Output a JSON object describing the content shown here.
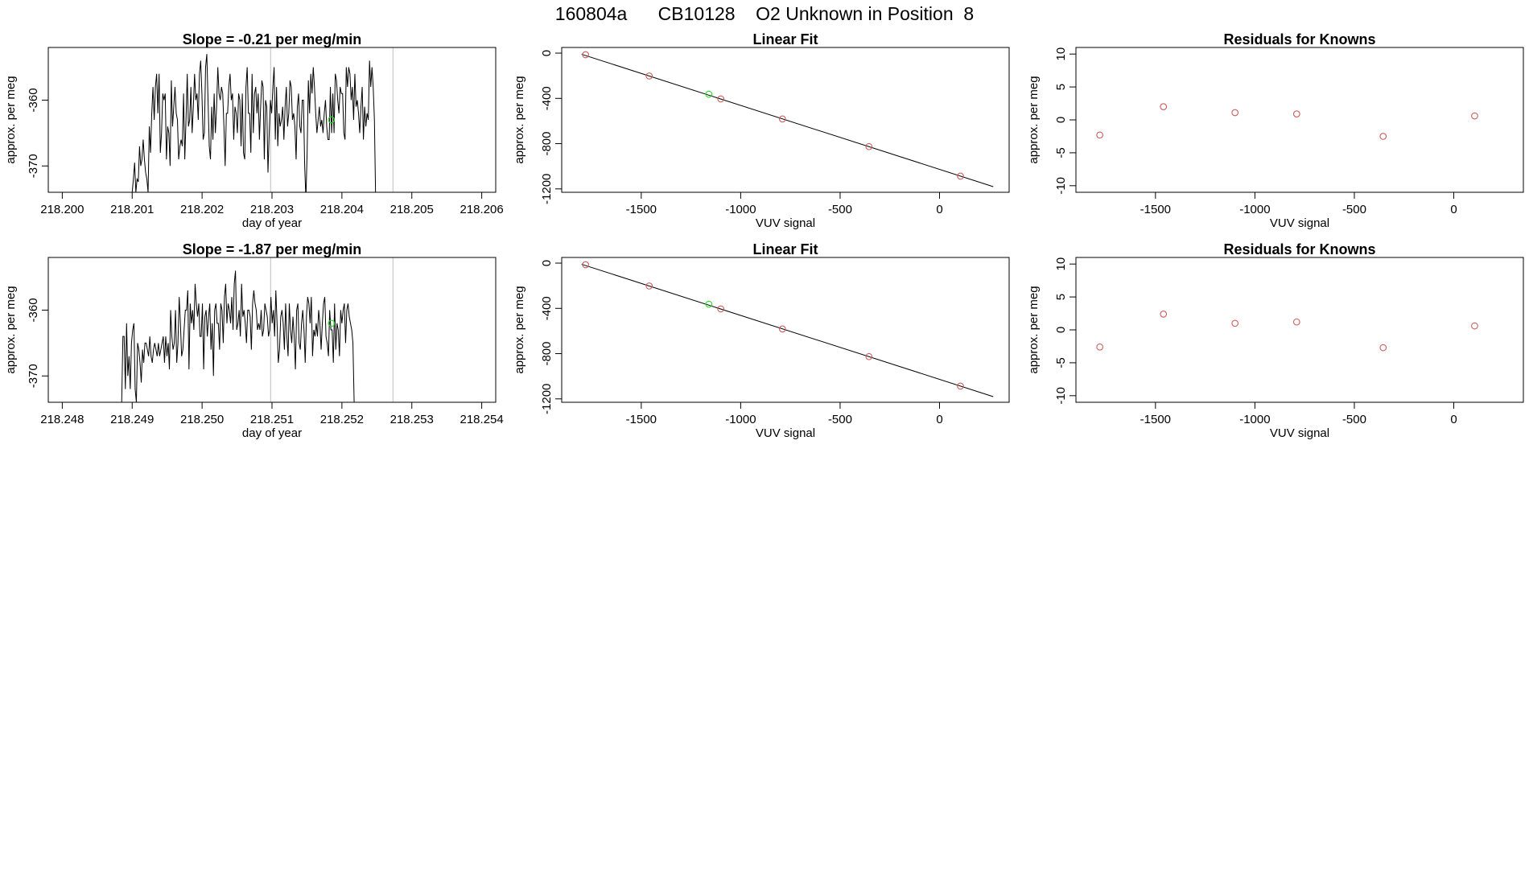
{
  "header": {
    "title": "160804a      CB10128    O2 Unknown in Position  8"
  },
  "colors": {
    "axis": "#000000",
    "line": "#000000",
    "known_point": "#cd5c5c",
    "unknown_point": "#22dd22",
    "gridline": "#bebebe"
  },
  "chart_data": [
    {
      "id": "ts1",
      "type": "line",
      "title": "Slope =  -0.21  per meg/min",
      "xlabel": "day of year",
      "ylabel": "approx. per meg",
      "xlim": [
        218.1998,
        218.2062
      ],
      "ylim": [
        -374,
        -352
      ],
      "xticks": [
        218.2,
        218.201,
        218.202,
        218.203,
        218.204,
        218.205,
        218.206
      ],
      "xtick_labels": [
        "218.200",
        "218.201",
        "218.202",
        "218.203",
        "218.204",
        "218.205",
        "218.206"
      ],
      "yticks": [
        -370,
        -360
      ],
      "ytick_labels": [
        "-370",
        "-360"
      ],
      "vlines": [
        218.20298,
        218.20473
      ],
      "unknown_point": {
        "x": 218.20385,
        "y": -363
      },
      "series": [
        {
          "name": "signal",
          "x_start": 218.201,
          "x_step": 1.75e-05,
          "values": [
            -374,
            -372,
            -369.5,
            -374,
            -372,
            -372.4,
            -367,
            -370,
            -369,
            -366,
            -369,
            -371,
            -372,
            -374,
            -364,
            -368,
            -362,
            -358,
            -363,
            -358,
            -356,
            -362,
            -356,
            -368,
            -365,
            -359,
            -360,
            -359,
            -369,
            -364,
            -365,
            -370,
            -357,
            -364,
            -361,
            -358,
            -362,
            -363,
            -369,
            -367,
            -366,
            -367,
            -359,
            -369,
            -363,
            -356,
            -364,
            -363,
            -358,
            -365,
            -361,
            -356,
            -360,
            -359,
            -363,
            -356,
            -354,
            -359,
            -366,
            -365,
            -355,
            -353,
            -360,
            -367,
            -369,
            -361,
            -366,
            -359,
            -365,
            -361,
            -355,
            -359,
            -360,
            -358,
            -359,
            -364,
            -370,
            -362,
            -362,
            -358,
            -356,
            -360,
            -359,
            -366,
            -361,
            -362,
            -365,
            -359,
            -360,
            -367,
            -359,
            -368,
            -369,
            -358,
            -355,
            -362,
            -362,
            -368,
            -356,
            -365,
            -359,
            -358,
            -362,
            -359,
            -366,
            -361,
            -357,
            -358,
            -369,
            -360,
            -361,
            -371,
            -365,
            -360,
            -362,
            -358,
            -355,
            -366,
            -358,
            -367,
            -362,
            -364,
            -363,
            -361,
            -366,
            -361,
            -358,
            -364,
            -362,
            -357,
            -358,
            -363,
            -362,
            -364,
            -369,
            -361,
            -359,
            -364,
            -365,
            -360,
            -360,
            -370,
            -375,
            -368,
            -357,
            -362,
            -356,
            -359,
            -355,
            -358,
            -362,
            -365,
            -363,
            -361,
            -364,
            -363,
            -365,
            -362,
            -360,
            -364,
            -366,
            -366,
            -358,
            -365,
            -359,
            -365,
            -356,
            -357,
            -360,
            -362,
            -358,
            -359,
            -359,
            -365,
            -366,
            -355,
            -358,
            -355,
            -356,
            -360,
            -358,
            -363,
            -356,
            -361,
            -360,
            -362,
            -365,
            -361,
            -358,
            -366,
            -361,
            -364,
            -362,
            -363,
            -354,
            -358,
            -355,
            -358,
            -363,
            -375
          ]
        }
      ]
    },
    {
      "id": "fit1",
      "type": "scatter",
      "title": "Linear Fit",
      "xlabel": "VUV signal",
      "ylabel": "approx. per meg",
      "xlim": [
        -1900,
        350
      ],
      "ylim": [
        -1230,
        50
      ],
      "xticks": [
        -1500,
        -1000,
        -500,
        0
      ],
      "xtick_labels": [
        "-1500",
        "-1000",
        "-500",
        "0"
      ],
      "yticks": [
        -1200,
        -800,
        -400,
        0
      ],
      "ytick_labels": [
        "-1200",
        "-800",
        "-400",
        "0"
      ],
      "fit_line": {
        "x": [
          -1800,
          270
        ],
        "y": [
          -10,
          -1180
        ]
      },
      "known_points": {
        "x": [
          -1780,
          -1460,
          -1100,
          -790,
          -355,
          105
        ],
        "y": [
          -14,
          -202,
          -405,
          -582,
          -826,
          -1087
        ]
      },
      "unknown_point": {
        "x": -1160,
        "y": -363
      }
    },
    {
      "id": "res1",
      "type": "scatter",
      "title": "Residuals for Knowns",
      "xlabel": "VUV signal",
      "ylabel": "approx. per meg",
      "xlim": [
        -1900,
        350
      ],
      "ylim": [
        -11,
        11
      ],
      "xticks": [
        -1500,
        -1000,
        -500,
        0
      ],
      "xtick_labels": [
        "-1500",
        "-1000",
        "-500",
        "0"
      ],
      "yticks": [
        -10,
        -5,
        0,
        5,
        10
      ],
      "ytick_labels": [
        "-10",
        "-5",
        "0",
        "5",
        "10"
      ],
      "known_points": {
        "x": [
          -1780,
          -1460,
          -1100,
          -790,
          -355,
          105
        ],
        "y": [
          -2.3,
          2.0,
          1.1,
          0.9,
          -2.5,
          0.6
        ]
      }
    },
    {
      "id": "ts2",
      "type": "line",
      "title": "Slope =  -1.87  per meg/min",
      "xlabel": "day of year",
      "ylabel": "approx. per meg",
      "xlim": [
        218.2478,
        218.2542
      ],
      "ylim": [
        -374,
        -352
      ],
      "xticks": [
        218.248,
        218.249,
        218.25,
        218.251,
        218.252,
        218.253,
        218.254
      ],
      "xtick_labels": [
        "218.248",
        "218.249",
        "218.250",
        "218.251",
        "218.252",
        "218.253",
        "218.254"
      ],
      "yticks": [
        -370,
        -360
      ],
      "ytick_labels": [
        "-370",
        "-360"
      ],
      "vlines": [
        218.25098,
        218.25273
      ],
      "unknown_point": {
        "x": 218.25185,
        "y": -362
      },
      "series": [
        {
          "name": "signal",
          "x_start": 218.24885,
          "x_step": 1.75e-05,
          "values": [
            -374,
            -364,
            -364,
            -372,
            -362,
            -370,
            -367,
            -372,
            -365,
            -363,
            -362,
            -372,
            -374,
            -365,
            -366,
            -368,
            -371,
            -366,
            -368,
            -365,
            -365,
            -366,
            -367,
            -364,
            -367,
            -368,
            -366,
            -365,
            -366,
            -367,
            -365,
            -367,
            -366,
            -365,
            -364,
            -368,
            -364,
            -367,
            -365,
            -369,
            -360,
            -364,
            -366,
            -365,
            -360,
            -368,
            -365,
            -358,
            -362,
            -367,
            -366,
            -363,
            -360,
            -360,
            -357,
            -369,
            -359,
            -362,
            -360,
            -363,
            -356,
            -359,
            -361,
            -359,
            -364,
            -364,
            -359,
            -369,
            -361,
            -360,
            -364,
            -361,
            -359,
            -366,
            -362,
            -370,
            -360,
            -359,
            -362,
            -362,
            -366,
            -359,
            -360,
            -365,
            -358,
            -356,
            -362,
            -359,
            -360,
            -362,
            -358,
            -363,
            -356,
            -354,
            -363,
            -362,
            -360,
            -364,
            -356,
            -361,
            -360,
            -362,
            -365,
            -360,
            -360,
            -361,
            -366,
            -359,
            -357,
            -359,
            -360,
            -363,
            -362,
            -363,
            -360,
            -364,
            -363,
            -359,
            -360,
            -361,
            -364,
            -363,
            -358,
            -362,
            -360,
            -364,
            -357,
            -362,
            -368,
            -366,
            -361,
            -360,
            -362,
            -366,
            -359,
            -364,
            -367,
            -359,
            -363,
            -365,
            -361,
            -364,
            -369,
            -360,
            -359,
            -365,
            -366,
            -362,
            -360,
            -363,
            -368,
            -361,
            -358,
            -359,
            -362,
            -358,
            -367,
            -363,
            -364,
            -362,
            -364,
            -360,
            -362,
            -366,
            -362,
            -359,
            -358,
            -364,
            -365,
            -367,
            -360,
            -363,
            -363,
            -368,
            -359,
            -366,
            -362,
            -363,
            -367,
            -360,
            -362,
            -360,
            -359,
            -365,
            -360,
            -359,
            -361,
            -362,
            -363,
            -365,
            -374
          ]
        }
      ]
    },
    {
      "id": "fit2",
      "type": "scatter",
      "title": "Linear Fit",
      "xlabel": "VUV signal",
      "ylabel": "approx. per meg",
      "xlim": [
        -1900,
        350
      ],
      "ylim": [
        -1230,
        50
      ],
      "xticks": [
        -1500,
        -1000,
        -500,
        0
      ],
      "xtick_labels": [
        "-1500",
        "-1000",
        "-500",
        "0"
      ],
      "yticks": [
        -1200,
        -800,
        -400,
        0
      ],
      "ytick_labels": [
        "-1200",
        "-800",
        "-400",
        "0"
      ],
      "fit_line": {
        "x": [
          -1800,
          270
        ],
        "y": [
          -10,
          -1180
        ]
      },
      "known_points": {
        "x": [
          -1780,
          -1460,
          -1100,
          -790,
          -355,
          105
        ],
        "y": [
          -14,
          -202,
          -405,
          -582,
          -826,
          -1087
        ]
      },
      "unknown_point": {
        "x": -1160,
        "y": -363
      }
    },
    {
      "id": "res2",
      "type": "scatter",
      "title": "Residuals for Knowns",
      "xlabel": "VUV signal",
      "ylabel": "approx. per meg",
      "xlim": [
        -1900,
        350
      ],
      "ylim": [
        -11,
        11
      ],
      "xticks": [
        -1500,
        -1000,
        -500,
        0
      ],
      "xtick_labels": [
        "-1500",
        "-1000",
        "-500",
        "0"
      ],
      "yticks": [
        -10,
        -5,
        0,
        5,
        10
      ],
      "ytick_labels": [
        "-10",
        "-5",
        "0",
        "5",
        "10"
      ],
      "known_points": {
        "x": [
          -1780,
          -1460,
          -1100,
          -790,
          -355,
          105
        ],
        "y": [
          -2.6,
          2.4,
          1.0,
          1.2,
          -2.7,
          0.6
        ]
      }
    }
  ]
}
